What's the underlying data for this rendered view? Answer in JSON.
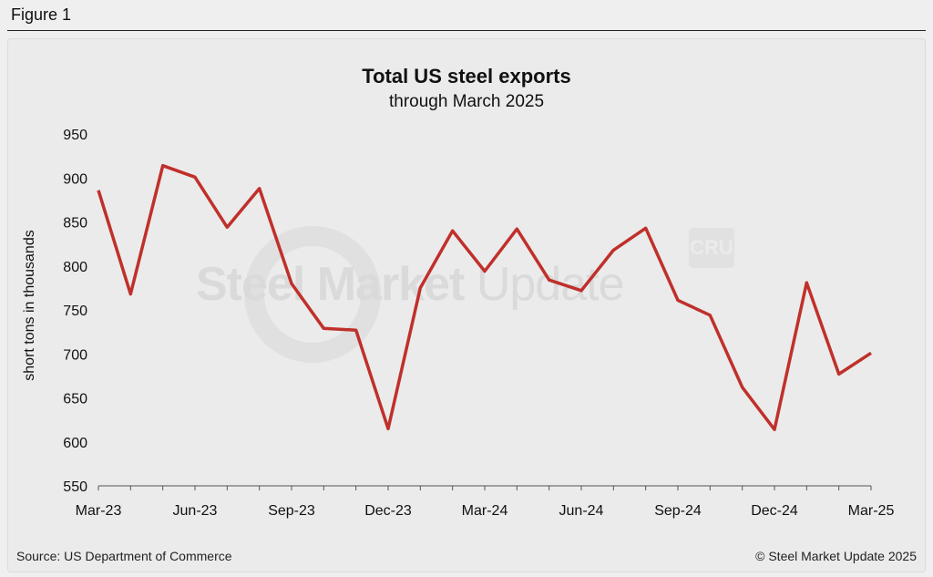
{
  "figure_label": "Figure 1",
  "source": "Source: US Department of Commerce",
  "copyright": "© Steel Market Update 2025",
  "watermark": {
    "bold": "Steel Market",
    "light": "Update",
    "logo": "CRU"
  },
  "colors": {
    "line": "#c0302b",
    "axis": "#555555",
    "background": "#ebebeb"
  },
  "chart_data": {
    "type": "line",
    "title": "Total US steel exports",
    "subtitle": "through March 2025",
    "ylabel": "short tons in thousands",
    "xlabel": "",
    "ylim": [
      550,
      950
    ],
    "yticks": [
      550,
      600,
      650,
      700,
      750,
      800,
      850,
      900,
      950
    ],
    "grid": false,
    "x": [
      "Mar-23",
      "Apr-23",
      "May-23",
      "Jun-23",
      "Jul-23",
      "Aug-23",
      "Sep-23",
      "Oct-23",
      "Nov-23",
      "Dec-23",
      "Jan-24",
      "Feb-24",
      "Mar-24",
      "Apr-24",
      "May-24",
      "Jun-24",
      "Jul-24",
      "Aug-24",
      "Sep-24",
      "Oct-24",
      "Nov-24",
      "Dec-24",
      "Jan-25",
      "Feb-25",
      "Mar-25"
    ],
    "xtick_labels": [
      "Mar-23",
      "Jun-23",
      "Sep-23",
      "Dec-23",
      "Mar-24",
      "Jun-24",
      "Sep-24",
      "Dec-24",
      "Mar-25"
    ],
    "series": [
      {
        "values": [
          886,
          768,
          914,
          901,
          844,
          888,
          780,
          729,
          727,
          615,
          775,
          840,
          794,
          842,
          784,
          772,
          818,
          843,
          761,
          744,
          662,
          614,
          781,
          677,
          701
        ]
      }
    ]
  }
}
